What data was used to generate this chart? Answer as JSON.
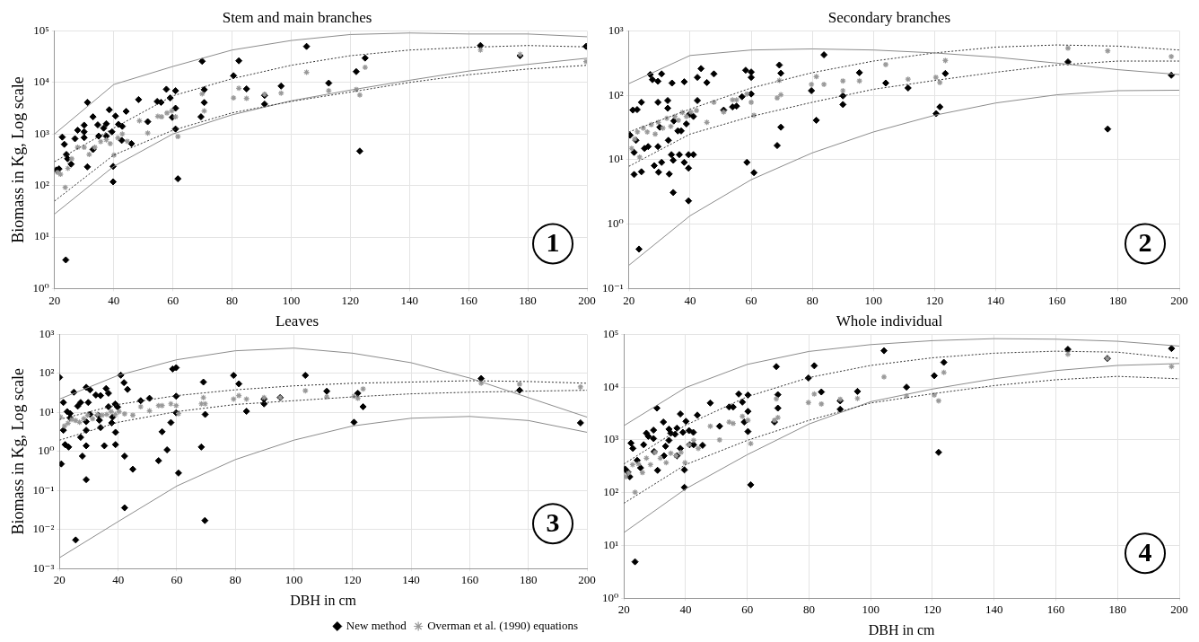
{
  "chart_data": [
    {
      "type": "scatter",
      "title": "Stem and main branches",
      "ylabel": "Biomass in Kg, Log scale",
      "xlim": [
        20,
        200
      ],
      "xticks": [
        20,
        40,
        60,
        80,
        100,
        120,
        140,
        160,
        180,
        200
      ],
      "ylim": [
        1,
        100000
      ],
      "yticks": [
        {
          "value": 1,
          "label": "10⁰"
        },
        {
          "value": 10,
          "label": "10¹"
        },
        {
          "value": 100,
          "label": "10²"
        },
        {
          "value": 1000,
          "label": "10³"
        },
        {
          "value": 10000,
          "label": "10⁴"
        },
        {
          "value": 100000,
          "label": "10⁵"
        }
      ],
      "log": "y",
      "grid": true,
      "annotations": [
        "1"
      ],
      "series": [
        {
          "type": "line",
          "color": "#8c8c8c",
          "marker": "none",
          "line_style": "solid",
          "x": [
            20,
            40,
            60,
            80,
            100,
            120,
            140,
            160,
            180,
            200
          ],
          "values": [
            1000,
            9100,
            20400,
            42500,
            65000,
            85000,
            91000,
            87000,
            87000,
            77000
          ]
        },
        {
          "type": "line",
          "color": "#333333",
          "marker": "none",
          "line_style": "dotted",
          "x": [
            20,
            40,
            60,
            80,
            100,
            120,
            140,
            160,
            180,
            200
          ],
          "values": [
            290,
            1300,
            5500,
            11800,
            21500,
            33000,
            42500,
            48000,
            52000,
            49000
          ]
        },
        {
          "type": "line",
          "color": "#333333",
          "marker": "none",
          "line_style": "dotted",
          "x": [
            20,
            40,
            60,
            80,
            100,
            120,
            140,
            160,
            180,
            200
          ],
          "values": [
            50,
            390,
            1180,
            2570,
            4270,
            6500,
            10000,
            14100,
            18200,
            21500
          ]
        },
        {
          "type": "line",
          "color": "#8c8c8c",
          "marker": "none",
          "line_style": "solid",
          "x": [
            20,
            40,
            60,
            80,
            100,
            120,
            140,
            160,
            180,
            200
          ],
          "values": [
            28,
            235,
            1000,
            2350,
            4400,
            7100,
            11000,
            16600,
            22400,
            29500
          ]
        },
        {
          "color": "#999999",
          "marker": "cross",
          "x": [
            21,
            22,
            23.6,
            24.5,
            25.8,
            27.8,
            30,
            31.7,
            33.6,
            35.6,
            37.5,
            38.8,
            40.1,
            41.4,
            42.9,
            44.6,
            48.7,
            51.5,
            54.9,
            56.2,
            58,
            59.6,
            60.9,
            61.7,
            69.9,
            70.6,
            80.5,
            82.3,
            84.9,
            91,
            96.6,
            105.2,
            112.7,
            122,
            123.2,
            125,
            164,
            177.4,
            199.7
          ],
          "values": [
            180,
            165,
            92,
            215,
            330,
            550,
            550,
            400,
            550,
            710,
            770,
            650,
            390,
            840,
            1000,
            720,
            1800,
            1040,
            2200,
            2150,
            2550,
            2800,
            2150,
            890,
            6000,
            2800,
            5000,
            7700,
            4900,
            5900,
            6200,
            15700,
            6900,
            7300,
            5700,
            19600,
            42500,
            35000,
            25400
          ]
        },
        {
          "color": "#000000",
          "marker": "diamond",
          "x": [
            20.6,
            21.5,
            22.6,
            23.3,
            24,
            24.4,
            23.8,
            25.6,
            26.9,
            27.8,
            30,
            30,
            30,
            31.1,
            31.1,
            33,
            33,
            34.6,
            34.9,
            36.6,
            37.5,
            37.5,
            38.5,
            39.4,
            39.8,
            39.8,
            40.6,
            41.6,
            42.9,
            42.7,
            44.2,
            46,
            48.4,
            51.5,
            54.7,
            56,
            57.8,
            59.1,
            59.8,
            60.9,
            60.9,
            60.9,
            61.7,
            69.9,
            69.5,
            70.6,
            70.6,
            80.5,
            82.3,
            84.9,
            91,
            91,
            96.6,
            105.2,
            112.7,
            122,
            123.2,
            125,
            164,
            177.4,
            199.7
          ],
          "values": [
            200,
            210,
            870,
            630,
            400,
            330,
            3.6,
            260,
            810,
            1180,
            1480,
            1100,
            850,
            4100,
            230,
            2150,
            500,
            1500,
            910,
            1300,
            1580,
            910,
            2950,
            1100,
            235,
            118,
            2230,
            1540,
            1410,
            750,
            2740,
            650,
            4650,
            1730,
            4270,
            4100,
            7370,
            5000,
            2100,
            6900,
            3160,
            1250,
            135,
            25700,
            2150,
            7240,
            4070,
            13500,
            26300,
            7500,
            5600,
            3800,
            8500,
            50000,
            9700,
            16200,
            465,
            29700,
            52000,
            33000,
            50000
          ]
        }
      ]
    },
    {
      "type": "scatter",
      "title": "Secondary branches",
      "xlim": [
        20,
        200
      ],
      "xticks": [
        20,
        40,
        60,
        80,
        100,
        120,
        140,
        160,
        180,
        200
      ],
      "ylim": [
        0.1,
        1000
      ],
      "yticks": [
        {
          "value": 0.1,
          "label": "10⁻¹"
        },
        {
          "value": 1,
          "label": "10⁰"
        },
        {
          "value": 10,
          "label": "10¹"
        },
        {
          "value": 100,
          "label": "10²"
        },
        {
          "value": 1000,
          "label": "10³"
        }
      ],
      "log": "y",
      "grid": true,
      "annotations": [
        "2"
      ],
      "series": [
        {
          "type": "line",
          "color": "#8c8c8c",
          "marker": "none",
          "line_style": "solid",
          "x": [
            20,
            40,
            60,
            80,
            100,
            120,
            140,
            160,
            180,
            200
          ],
          "values": [
            152,
            415,
            505,
            525,
            505,
            455,
            390,
            316,
            250,
            210
          ]
        },
        {
          "type": "line",
          "color": "#333333",
          "marker": "none",
          "line_style": "dotted",
          "x": [
            20,
            40,
            60,
            80,
            100,
            120,
            140,
            160,
            180,
            200
          ],
          "values": [
            27,
            61,
            130,
            225,
            340,
            455,
            560,
            605,
            580,
            505
          ]
        },
        {
          "type": "line",
          "color": "#333333",
          "marker": "none",
          "line_style": "dotted",
          "x": [
            20,
            40,
            60,
            80,
            100,
            120,
            140,
            160,
            180,
            200
          ],
          "values": [
            7.9,
            25,
            47,
            78,
            124,
            170,
            228,
            295,
            340,
            340
          ]
        },
        {
          "type": "line",
          "color": "#8c8c8c",
          "marker": "none",
          "line_style": "solid",
          "x": [
            20,
            40,
            60,
            80,
            100,
            120,
            140,
            160,
            180,
            200
          ],
          "values": [
            0.23,
            1.35,
            4.9,
            12.8,
            27,
            49,
            76,
            102,
            118,
            120
          ]
        },
        {
          "color": "#999999",
          "marker": "cross",
          "x": [
            20.9,
            21.9,
            22.8,
            23.5,
            24.7,
            26,
            27.3,
            28.6,
            29.6,
            31.1,
            32.4,
            33.7,
            35,
            36.2,
            37.5,
            38.8,
            40.3,
            42.1,
            45.5,
            47.8,
            51,
            53.9,
            55.2,
            58.6,
            60,
            60.9,
            68.5,
            69.2,
            69.7,
            79.7,
            81.3,
            83.8,
            90,
            90,
            95.4,
            104,
            111.3,
            120.4,
            121.7,
            123.5,
            163.6,
            176.6,
            197.4
          ],
          "values": [
            15,
            21,
            27,
            11,
            31,
            27,
            35,
            25,
            38,
            31,
            44,
            33,
            47,
            41,
            54,
            47,
            55,
            58,
            38,
            78,
            55,
            85,
            85,
            105,
            78,
            49,
            91,
            170,
            102,
            148,
            195,
            148,
            167,
            118,
            167,
            300,
            178,
            190,
            158,
            347,
            540,
            490,
            400
          ]
        },
        {
          "color": "#000000",
          "marker": "diamond",
          "x": [
            20.4,
            21.3,
            21.7,
            21.7,
            22.3,
            22.7,
            24.1,
            24.1,
            23.3,
            25.1,
            26.3,
            27,
            27.7,
            28.3,
            29.5,
            29.5,
            29.5,
            29.7,
            30.1,
            30.7,
            30.7,
            32.7,
            32.7,
            32.9,
            33.2,
            34.1,
            33.9,
            34.5,
            34.5,
            34.7,
            36,
            36.5,
            37.1,
            38.1,
            38.1,
            38.8,
            39.5,
            39.5,
            39.5,
            39.8,
            41.1,
            41.1,
            42.4,
            42.4,
            43.6,
            45.5,
            47.8,
            51,
            53.9,
            55.2,
            57,
            58.2,
            58.6,
            60,
            60,
            60,
            60.9,
            68.5,
            69.2,
            69.7,
            69.7,
            79.7,
            81.3,
            83.8,
            90,
            90,
            95.4,
            104,
            111.3,
            120.5,
            121.7,
            123.5,
            163.6,
            176.6,
            197.4
          ],
          "values": [
            24,
            59,
            13,
            5.9,
            20,
            60,
            78,
            6.5,
            0.41,
            15,
            16,
            210,
            175,
            8.1,
            165,
            78,
            16,
            6.4,
            32,
            215,
            9.1,
            83,
            63,
            20,
            6,
            155,
            12,
            9.8,
            3.1,
            40,
            28,
            12,
            28,
            162,
            9.1,
            36,
            12,
            7.4,
            2.3,
            51,
            47,
            12,
            190,
            83,
            260,
            158,
            215,
            59,
            66,
            68,
            95,
            245,
            9.1,
            190,
            105,
            230,
            6.3,
            16.6,
            295,
            220,
            32,
            118,
            41,
            425,
            98,
            72,
            225,
            155,
            130,
            52,
            66,
            218,
            330,
            30,
            205
          ]
        }
      ]
    },
    {
      "type": "scatter",
      "title": "Leaves",
      "xlabel": "DBH in cm",
      "ylabel": "Biomass in Kg, Log scale",
      "xlim": [
        20,
        200
      ],
      "xticks": [
        20,
        40,
        60,
        80,
        100,
        120,
        140,
        160,
        180,
        200
      ],
      "ylim": [
        0.001,
        1000
      ],
      "yticks": [
        {
          "value": 0.001,
          "label": "10⁻³"
        },
        {
          "value": 0.01,
          "label": "10⁻²"
        },
        {
          "value": 0.1,
          "label": "10⁻¹"
        },
        {
          "value": 1,
          "label": "10⁰"
        },
        {
          "value": 10,
          "label": "10¹"
        },
        {
          "value": 100,
          "label": "10²"
        },
        {
          "value": 1000,
          "label": "10³"
        }
      ],
      "log": "y",
      "grid": true,
      "legend": "bottom right",
      "annotations": [
        "3"
      ],
      "series": [
        {
          "type": "line",
          "color": "#8c8c8c",
          "marker": "none",
          "line_style": "solid",
          "x": [
            20,
            40,
            60,
            80,
            100,
            120,
            140,
            160,
            180,
            200
          ],
          "values": [
            22,
            89,
            224,
            380,
            445,
            330,
            188,
            76,
            24,
            7.6
          ]
        },
        {
          "type": "line",
          "color": "#333333",
          "marker": "none",
          "line_style": "dotted",
          "x": [
            20,
            40,
            60,
            80,
            100,
            120,
            140,
            160,
            180,
            200
          ],
          "values": [
            6.6,
            16,
            27,
            38,
            48,
            56,
            60,
            65,
            62,
            56
          ]
        },
        {
          "type": "line",
          "color": "#333333",
          "marker": "none",
          "line_style": "dotted",
          "x": [
            20,
            40,
            60,
            80,
            100,
            120,
            140,
            160,
            180,
            200
          ],
          "values": [
            1.95,
            5.6,
            10.5,
            16,
            20,
            25,
            30,
            33,
            35,
            37
          ]
        },
        {
          "type": "line",
          "color": "#8c8c8c",
          "marker": "none",
          "line_style": "solid",
          "x": [
            20,
            40,
            60,
            80,
            100,
            120,
            140,
            160,
            180,
            200
          ],
          "values": [
            0.0019,
            0.016,
            0.13,
            0.62,
            1.95,
            4.5,
            7.1,
            7.9,
            6.2,
            3.1
          ]
        },
        {
          "name": "Overman et al. (1990) equations",
          "color": "#999999",
          "marker": "cross",
          "x": [
            20.4,
            21.7,
            22.9,
            24.2,
            25.5,
            26.8,
            28.3,
            29.6,
            31.3,
            32.9,
            34.5,
            36.1,
            37.6,
            39,
            40.3,
            42.2,
            45,
            47.7,
            50.7,
            53.8,
            55,
            58,
            59.8,
            60.6,
            68.4,
            69.1,
            69.7,
            79.4,
            81.2,
            83.8,
            89.8,
            95.3,
            103.9,
            111.2,
            120.5,
            121.8,
            123.6,
            163.9,
            177,
            197.8
          ],
          "values": [
            7.6,
            4.5,
            5.3,
            6.6,
            6.2,
            5.6,
            6.9,
            8.5,
            6.9,
            8.9,
            8.5,
            8.9,
            10.5,
            8.9,
            10.5,
            9.2,
            8.5,
            14,
            11,
            15,
            15,
            16.6,
            15,
            9.3,
            16.6,
            24,
            16.6,
            22,
            27,
            22,
            24,
            24,
            36,
            25,
            26,
            23,
            40,
            56,
            53,
            45
          ]
        },
        {
          "name": "New method",
          "color": "#000000",
          "marker": "diamond",
          "x": [
            20,
            20.6,
            21.3,
            21.3,
            21.9,
            22.6,
            23.1,
            23.6,
            23.6,
            24.9,
            25.5,
            26.2,
            27.2,
            27.2,
            27.8,
            29.1,
            29.1,
            29.1,
            29.1,
            29.1,
            29.8,
            30.4,
            30.4,
            32.4,
            33.2,
            33.6,
            34,
            34,
            35.3,
            35.9,
            36.7,
            36.7,
            37.8,
            38.1,
            39,
            39.1,
            39.1,
            39.8,
            40.9,
            42,
            42.2,
            42.2,
            43.2,
            45,
            47.7,
            50.7,
            53.8,
            55,
            56.7,
            58,
            58.6,
            59.8,
            59.8,
            59.8,
            60.6,
            68.4,
            69.1,
            69.6,
            69.7,
            79.4,
            81.2,
            83.8,
            89.8,
            89.8,
            95.3,
            103.9,
            111.2,
            120.5,
            121.8,
            123.6,
            163.9,
            177,
            197.8
          ],
          "values": [
            79,
            0.48,
            18,
            3.5,
            1.5,
            10.5,
            1.3,
            9.4,
            7.3,
            33,
            0.0054,
            14.5,
            18,
            2.3,
            0.76,
            44,
            5.8,
            3.5,
            1.4,
            0.19,
            18,
            38,
            8.9,
            28,
            8.5,
            6.3,
            27,
            4.1,
            1.4,
            41,
            31,
            14,
            5.4,
            7.6,
            16.5,
            3.1,
            1.5,
            13.8,
            90,
            58,
            0.76,
            0.036,
            39,
            0.35,
            20,
            23,
            0.58,
            3.2,
            1.1,
            5.5,
            130,
            140,
            26,
            9.8,
            0.28,
            1.3,
            60,
            0.017,
            8.9,
            89,
            54,
            10.7,
            22,
            16.6,
            24,
            89,
            35,
            5.6,
            31,
            14,
            74,
            37,
            5.4
          ]
        }
      ]
    },
    {
      "type": "scatter",
      "title": "Whole individual",
      "xlabel": "DBH in cm",
      "xlim": [
        20,
        200
      ],
      "xticks": [
        20,
        40,
        60,
        80,
        100,
        120,
        140,
        160,
        180,
        200
      ],
      "ylim": [
        1,
        100000
      ],
      "yticks": [
        {
          "value": 1,
          "label": "10⁰"
        },
        {
          "value": 10,
          "label": "10¹"
        },
        {
          "value": 100,
          "label": "10²"
        },
        {
          "value": 1000,
          "label": "10³"
        },
        {
          "value": 10000,
          "label": "10⁴"
        },
        {
          "value": 100000,
          "label": "10⁵"
        }
      ],
      "log": "y",
      "grid": true,
      "annotations": [
        "4"
      ],
      "series": [
        {
          "type": "line",
          "color": "#8c8c8c",
          "marker": "none",
          "line_style": "solid",
          "x": [
            20,
            40,
            60,
            80,
            100,
            120,
            140,
            160,
            180,
            200
          ],
          "values": [
            1860,
            9800,
            27000,
            47500,
            64000,
            76000,
            83000,
            81000,
            74000,
            60000
          ]
        },
        {
          "type": "line",
          "color": "#333333",
          "marker": "none",
          "line_style": "dotted",
          "x": [
            20,
            40,
            60,
            80,
            100,
            120,
            140,
            160,
            180,
            200
          ],
          "values": [
            350,
            1900,
            6600,
            15200,
            25800,
            36000,
            44000,
            48000,
            46000,
            35000
          ]
        },
        {
          "type": "line",
          "color": "#333333",
          "marker": "none",
          "line_style": "dotted",
          "x": [
            20,
            40,
            60,
            80,
            100,
            120,
            140,
            160,
            180,
            200
          ],
          "values": [
            63,
            340,
            980,
            2350,
            5000,
            7500,
            10700,
            13800,
            16000,
            14400
          ]
        },
        {
          "type": "line",
          "color": "#8c8c8c",
          "marker": "none",
          "line_style": "solid",
          "x": [
            20,
            40,
            60,
            80,
            100,
            120,
            140,
            160,
            180,
            200
          ],
          "values": [
            17.5,
            118,
            525,
            2000,
            5300,
            9200,
            14400,
            20600,
            25800,
            28000
          ]
        },
        {
          "color": "#999999",
          "marker": "cross",
          "x": [
            20.6,
            21.5,
            22.8,
            23.6,
            24.7,
            26,
            27.3,
            28.6,
            30.1,
            31.8,
            33.7,
            35.2,
            36.9,
            38.5,
            39.8,
            41.1,
            42.6,
            44.1,
            48,
            51,
            54.1,
            55.4,
            58.4,
            60.2,
            61.1,
            68.8,
            69.4,
            69.9,
            79.8,
            81.7,
            84,
            90.1,
            95.7,
            104.3,
            111.6,
            120.6,
            122,
            123.7,
            163.9,
            176.7,
            197.5
          ],
          "values": [
            200,
            235,
            340,
            102,
            350,
            240,
            450,
            340,
            580,
            450,
            370,
            560,
            500,
            580,
            370,
            810,
            980,
            690,
            1820,
            1000,
            2180,
            2050,
            2800,
            2350,
            850,
            2350,
            6000,
            2650,
            5100,
            7400,
            4800,
            5900,
            6100,
            15600,
            6800,
            7100,
            5500,
            19000,
            42000,
            35000,
            24500
          ]
        },
        {
          "color": "#000000",
          "marker": "diamond",
          "x": [
            20.4,
            21.3,
            21.9,
            22.3,
            22.9,
            23.6,
            24.3,
            25.4,
            26.4,
            27.3,
            27.9,
            29.6,
            29.6,
            29.8,
            30.7,
            30.9,
            32.8,
            33,
            33.5,
            34.6,
            34.6,
            35.2,
            36.6,
            37.2,
            37.2,
            38.3,
            38.3,
            39.1,
            39.6,
            39.6,
            40.1,
            41.1,
            41.3,
            42.5,
            42.6,
            43.8,
            45.5,
            48,
            51,
            54.1,
            55.4,
            57.2,
            58.4,
            59,
            60.2,
            60.2,
            60.2,
            61.1,
            68.8,
            69.4,
            69.9,
            69.9,
            79.8,
            81.7,
            84,
            90.1,
            90.1,
            95.7,
            104.3,
            111.6,
            120.6,
            122,
            123.7,
            163.9,
            176.7,
            197.5
          ],
          "values": [
            280,
            245,
            200,
            870,
            690,
            4.9,
            410,
            295,
            810,
            1340,
            1170,
            1530,
            1060,
            600,
            4000,
            265,
            2180,
            500,
            760,
            1600,
            980,
            1340,
            1280,
            1670,
            500,
            3100,
            690,
            1390,
            270,
            126,
            2250,
            1500,
            810,
            1390,
            810,
            2950,
            790,
            5000,
            1820,
            4200,
            4200,
            7400,
            5200,
            2180,
            7100,
            3470,
            1440,
            141,
            2180,
            24500,
            7200,
            4000,
            14900,
            25400,
            8100,
            5500,
            3800,
            8300,
            49000,
            10000,
            16500,
            580,
            29500,
            52000,
            35000,
            54000
          ]
        }
      ]
    }
  ]
}
